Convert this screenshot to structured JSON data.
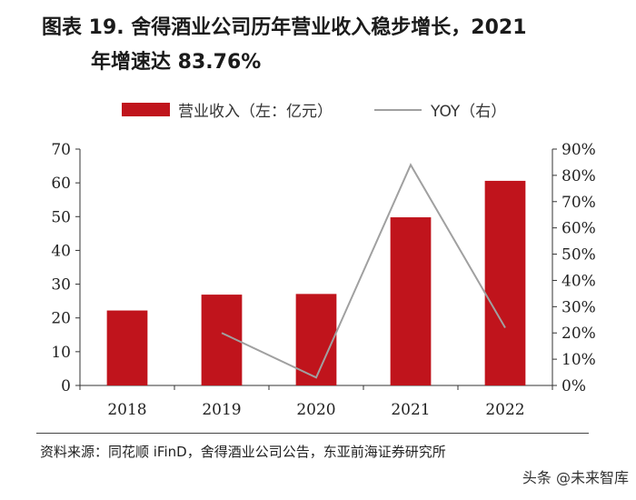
{
  "header": {
    "title_line1": "图表 19. 舍得酒业公司历年营业收入稳步增长，2021",
    "title_line2": "年增速达 83.76%"
  },
  "footer": {
    "source": "资料来源：同花顺 iFinD，舍得酒业公司公告，东亚前海证券研究所",
    "watermark": "头条 @未来智库"
  },
  "colors": {
    "bar": "#c0141c",
    "line": "#a0a0a0"
  },
  "chart_data": {
    "type": "bar",
    "categories": [
      "2018",
      "2019",
      "2020",
      "2021",
      "2022"
    ],
    "series": [
      {
        "name": "营业收入（左：亿元）",
        "type": "bar",
        "axis": "left",
        "values": [
          22.2,
          26.9,
          27.1,
          49.8,
          60.6
        ]
      },
      {
        "name": "YOY（右）",
        "type": "line",
        "axis": "right",
        "values": [
          null,
          0.2,
          0.03,
          0.84,
          0.22
        ]
      }
    ],
    "y_left": {
      "range": [
        0,
        70
      ],
      "ticks": [
        "0",
        "10",
        "20",
        "30",
        "40",
        "50",
        "60",
        "70"
      ]
    },
    "y_right": {
      "range": [
        0,
        0.9
      ],
      "ticks": [
        "0%",
        "10%",
        "20%",
        "30%",
        "40%",
        "50%",
        "60%",
        "70%",
        "80%",
        "90%"
      ]
    },
    "grid": false,
    "legend_position": "top"
  }
}
